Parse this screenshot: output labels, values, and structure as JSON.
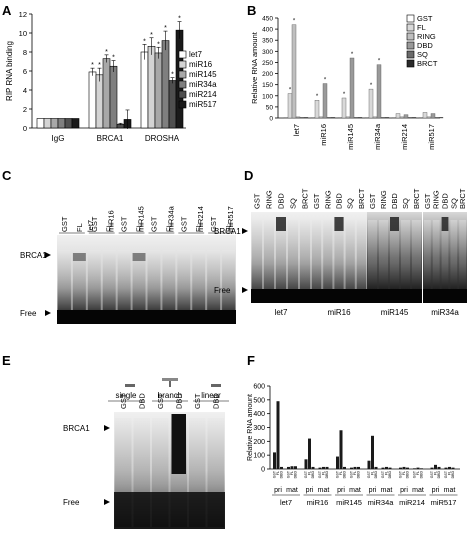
{
  "panel_letters": [
    "A",
    "B",
    "C",
    "D",
    "E",
    "F"
  ],
  "chart_data": [
    {
      "panel": "A",
      "type": "bar",
      "ylabel": "RIP RNA binding",
      "ylim": [
        0,
        12
      ],
      "yticks": [
        0,
        2,
        4,
        6,
        8,
        10,
        12
      ],
      "categories": [
        "IgG",
        "BRCA1",
        "DROSHA"
      ],
      "series": [
        {
          "name": "let7",
          "color": "#ffffff",
          "values": [
            1,
            5.9,
            8.0
          ],
          "errors": [
            0,
            0.4,
            0.8
          ]
        },
        {
          "name": "miR16",
          "color": "#d4d4d4",
          "values": [
            1,
            5.6,
            8.6
          ],
          "errors": [
            0,
            0.7,
            0.9
          ]
        },
        {
          "name": "miR145",
          "color": "#a8a8a8",
          "values": [
            1,
            7.3,
            7.9
          ],
          "errors": [
            0,
            0.4,
            0.6
          ]
        },
        {
          "name": "miR34a",
          "color": "#7f7f7f",
          "values": [
            1,
            6.5,
            9.2
          ],
          "errors": [
            0,
            0.6,
            1.0
          ]
        },
        {
          "name": "miR214",
          "color": "#4f4f4f",
          "values": [
            1,
            0.4,
            5.0
          ],
          "errors": [
            0,
            0.1,
            0.3
          ]
        },
        {
          "name": "miR517",
          "color": "#1a1a1a",
          "values": [
            1,
            0.9,
            10.3
          ],
          "errors": [
            0,
            1.0,
            0.9
          ]
        }
      ],
      "star_marks": [
        [
          false,
          true,
          true
        ],
        [
          false,
          true,
          true
        ],
        [
          false,
          true,
          true
        ],
        [
          false,
          true,
          true
        ],
        [
          false,
          false,
          true
        ],
        [
          false,
          false,
          true
        ]
      ],
      "star_glyph": "*"
    },
    {
      "panel": "B",
      "type": "bar",
      "ylabel": "Relative RNA amount",
      "ylim": [
        0,
        450
      ],
      "yticks": [
        0,
        50,
        100,
        150,
        200,
        250,
        300,
        350,
        400,
        450
      ],
      "categories": [
        "let7",
        "miR16",
        "miR145",
        "miR34a",
        "miR214",
        "miR517"
      ],
      "series": [
        {
          "name": "GST",
          "color": "#ffffff",
          "values": [
            2,
            2,
            2,
            2,
            2,
            2
          ]
        },
        {
          "name": "FL",
          "color": "#d9d9d9",
          "values": [
            110,
            80,
            90,
            130,
            20,
            25
          ]
        },
        {
          "name": "RING",
          "color": "#bfbfbf",
          "values": [
            420,
            5,
            5,
            5,
            5,
            5
          ]
        },
        {
          "name": "DBD",
          "color": "#9a9a9a",
          "values": [
            5,
            155,
            270,
            240,
            15,
            20
          ]
        },
        {
          "name": "SQ",
          "color": "#6a6a6a",
          "values": [
            3,
            3,
            3,
            3,
            3,
            3
          ]
        },
        {
          "name": "BRCT",
          "color": "#2a2a2a",
          "values": [
            3,
            3,
            3,
            3,
            3,
            3
          ]
        }
      ]
    },
    {
      "panel": "F",
      "type": "bar",
      "ylabel": "Relative RNA amount",
      "ylim": [
        0,
        600
      ],
      "yticks": [
        0,
        100,
        200,
        300,
        400,
        500,
        600
      ],
      "groups": [
        "let7",
        "miR16",
        "miR145",
        "miR34a",
        "miR214",
        "miR517"
      ],
      "subgroups": [
        "pri",
        "mat"
      ],
      "bar_labels": [
        "GST",
        "FL",
        "DBD"
      ],
      "values": [
        [
          [
            120,
            490,
            15
          ],
          [
            15,
            20,
            20
          ]
        ],
        [
          [
            70,
            220,
            15
          ],
          [
            10,
            15,
            15
          ]
        ],
        [
          [
            90,
            280,
            15
          ],
          [
            10,
            15,
            15
          ]
        ],
        [
          [
            60,
            240,
            15
          ],
          [
            10,
            15,
            10
          ]
        ],
        [
          [
            10,
            15,
            10
          ],
          [
            5,
            10,
            5
          ]
        ],
        [
          [
            10,
            30,
            15
          ],
          [
            10,
            15,
            10
          ]
        ]
      ]
    }
  ],
  "panelC": {
    "top_labels": [
      {
        "text": "GST",
        "col": 0
      },
      {
        "text": "FL",
        "col": 1
      },
      {
        "text": "let7",
        "col": 1.6
      },
      {
        "text": "GST",
        "col": 2
      },
      {
        "text": "FL",
        "col": 3
      },
      {
        "text": "miR16",
        "col": 3
      },
      {
        "text": "GST",
        "col": 4
      },
      {
        "text": "FL",
        "col": 5
      },
      {
        "text": "miR145",
        "col": 5
      },
      {
        "text": "GST",
        "col": 6
      },
      {
        "text": "FL",
        "col": 7
      },
      {
        "text": "miR34a",
        "col": 7
      },
      {
        "text": "GST",
        "col": 8
      },
      {
        "text": "FL",
        "col": 9
      },
      {
        "text": "miR214",
        "col": 9
      },
      {
        "text": "GST",
        "col": 10
      },
      {
        "text": "FL",
        "col": 11
      },
      {
        "text": "miR517",
        "col": 11
      }
    ],
    "left_labels": [
      {
        "text": "BRCA1",
        "y": 255
      },
      {
        "text": "Free",
        "y": 313
      }
    ]
  },
  "panelD": {
    "top_labels": [
      "GST",
      "RING",
      "DBD",
      "SQ",
      "BRCT"
    ],
    "bottom_labels": [
      "let7",
      "miR16",
      "miR145",
      "miR34a"
    ],
    "left_labels": [
      {
        "text": "BRCA1",
        "y": 231
      },
      {
        "text": "Free",
        "y": 290
      }
    ]
  },
  "panelE": {
    "headers": [
      "single",
      "branch",
      "linear"
    ],
    "lane_labels": [
      "GST",
      "DBD",
      "GST",
      "DBD",
      "GST",
      "DBD"
    ],
    "left_labels": [
      {
        "text": "BRCA1",
        "y": 428
      },
      {
        "text": "Free",
        "y": 502
      }
    ]
  }
}
